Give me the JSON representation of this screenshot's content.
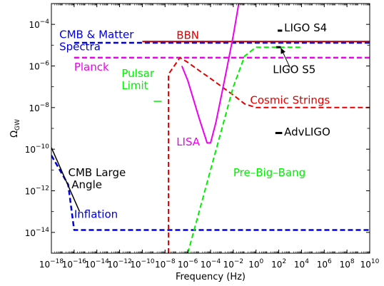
{
  "chart_data": {
    "type": "line",
    "title": "",
    "xlabel": "Frequency (Hz)",
    "ylabel": "Ω",
    "ylabel_sub": "GW",
    "x_scale": "log",
    "y_scale": "log",
    "xlim": [
      1e-18,
      10000000000.0
    ],
    "ylim": [
      1e-15,
      0.001
    ],
    "grid": false,
    "x_ticks": [
      {
        "value": 1e-18,
        "base": "10",
        "exp": "−18"
      },
      {
        "value": 1e-16,
        "base": "10",
        "exp": "−16"
      },
      {
        "value": 1e-14,
        "base": "10",
        "exp": "−14"
      },
      {
        "value": 1e-12,
        "base": "10",
        "exp": "−12"
      },
      {
        "value": 1e-10,
        "base": "10",
        "exp": "−10"
      },
      {
        "value": 1e-08,
        "base": "10",
        "exp": "−8"
      },
      {
        "value": 1e-06,
        "base": "10",
        "exp": "−6"
      },
      {
        "value": 0.0001,
        "base": "10",
        "exp": "−4"
      },
      {
        "value": 0.01,
        "base": "10",
        "exp": "−2"
      },
      {
        "value": 1.0,
        "base": "10",
        "exp": "0"
      },
      {
        "value": 100.0,
        "base": "10",
        "exp": "2"
      },
      {
        "value": 10000.0,
        "base": "10",
        "exp": "4"
      },
      {
        "value": 1000000.0,
        "base": "10",
        "exp": "6"
      },
      {
        "value": 100000000.0,
        "base": "10",
        "exp": "8"
      },
      {
        "value": 10000000000.0,
        "base": "10",
        "exp": "10"
      }
    ],
    "y_ticks": [
      {
        "value": 1e-14,
        "base": "10",
        "exp": "−14"
      },
      {
        "value": 1e-12,
        "base": "10",
        "exp": "−12"
      },
      {
        "value": 1e-10,
        "base": "10",
        "exp": "−10"
      },
      {
        "value": 1e-08,
        "base": "10",
        "exp": "−8"
      },
      {
        "value": 1e-06,
        "base": "10",
        "exp": "−6"
      },
      {
        "value": 0.0001,
        "base": "10",
        "exp": "−4"
      }
    ],
    "series": [
      {
        "key": "bbn",
        "color": "#e00000",
        "style": "solid",
        "width": 2.2,
        "x": [
          1e-10,
          10000000000.0
        ],
        "y": [
          1.5e-05,
          1.5e-05
        ]
      },
      {
        "key": "cmb-matter",
        "color": "#0000dd",
        "style": "dashed",
        "width": 2.5,
        "x": [
          1e-16,
          10000000000.0
        ],
        "y": [
          1.3e-05,
          1.3e-05
        ]
      },
      {
        "key": "planck",
        "color": "#ee00ee",
        "style": "dashed",
        "width": 2.5,
        "x": [
          1e-16,
          10000000000.0
        ],
        "y": [
          2.5e-06,
          2.5e-06
        ]
      },
      {
        "key": "inflation",
        "color": "#0000dd",
        "style": "dashed",
        "width": 2.5,
        "x": [
          1e-18,
          3e-17,
          1e-16,
          1e-12,
          1e-08,
          0.0001,
          1,
          10000.0,
          10000000000.0
        ],
        "y": [
          5e-11,
          2e-12,
          1.3e-14,
          1.3e-14,
          1.3e-14,
          1.3e-14,
          1.3e-14,
          1.3e-14,
          1.3e-14
        ]
      },
      {
        "key": "cmb-large-angle",
        "color": "#000000",
        "style": "solid",
        "width": 1.5,
        "x": [
          1e-18,
          3e-16
        ],
        "y": [
          1.2e-10,
          1e-13
        ]
      },
      {
        "key": "cosmic-strings",
        "color": "#e00000",
        "style": "dashed",
        "width": 2,
        "x": [
          2e-08,
          2e-08,
          2e-07,
          1e-06,
          1e-05,
          0.0001,
          0.001,
          0.01,
          0.1,
          1,
          10,
          10000.0,
          10000000000.0
        ],
        "y": [
          1e-15,
          4e-07,
          2.5e-06,
          1.5e-06,
          6e-07,
          2.5e-07,
          1e-07,
          4e-08,
          1.5e-08,
          1e-08,
          1e-08,
          1e-08,
          1e-08
        ]
      },
      {
        "key": "lisa",
        "color": "#ee00ee",
        "style": "solid",
        "width": 2,
        "x": [
          3e-07,
          1e-06,
          1e-05,
          5e-05,
          0.0001,
          0.0003,
          0.001,
          0.003,
          0.01,
          0.03,
          0.1
        ],
        "y": [
          1e-06,
          2e-07,
          3e-09,
          2e-10,
          2e-10,
          2e-09,
          5e-08,
          1e-06,
          3e-05,
          0.001,
          0.001
        ]
      },
      {
        "key": "pre-big-bang",
        "color": "#00ee00",
        "style": "dashed",
        "width": 2,
        "x": [
          1e-06,
          0.0001,
          0.01,
          0.1,
          1,
          100.0,
          10000.0
        ],
        "y": [
          1e-15,
          1e-11,
          1e-07,
          3e-06,
          8e-06,
          8e-06,
          8e-06
        ]
      }
    ],
    "segments": [
      {
        "key": "pulsar-limit",
        "color": "#00ee00",
        "width": 1.5,
        "x": [
          1e-09,
          5e-09
        ],
        "y": [
          2e-08,
          2e-08
        ]
      },
      {
        "key": "ligo-s4",
        "color": "#000000",
        "width": 3,
        "x": [
          80,
          200
        ],
        "y": [
          5e-05,
          5e-05
        ]
      },
      {
        "key": "ligo-s5",
        "color": "#000000",
        "width": 3,
        "x": [
          60,
          150
        ],
        "y": [
          8e-06,
          8e-06
        ]
      },
      {
        "key": "adv-ligo",
        "color": "#000000",
        "width": 3,
        "x": [
          50,
          200
        ],
        "y": [
          6e-10,
          6e-10
        ]
      }
    ],
    "annotations": [
      {
        "key": "cmb-matter",
        "lines": [
          "CMB & Matter",
          "Spectra"
        ],
        "color": "#0000dd",
        "x": 5e-18,
        "y": 2.2e-05,
        "anchor": "start"
      },
      {
        "key": "bbn",
        "lines": [
          "BBN"
        ],
        "color": "#e00000",
        "x": 1e-07,
        "y": 2e-05,
        "anchor": "start"
      },
      {
        "key": "planck",
        "lines": [
          "Planck"
        ],
        "color": "#ee00ee",
        "x": 1e-16,
        "y": 6e-07,
        "anchor": "start"
      },
      {
        "key": "ligo-s4",
        "lines": [
          "LIGO S4"
        ],
        "color": "#000000",
        "x": 300,
        "y": 4.6e-05,
        "anchor": "start"
      },
      {
        "key": "ligo-s5",
        "lines": [
          "LIGO S5"
        ],
        "color": "#000000",
        "x": 30,
        "y": 4.5e-07,
        "anchor": "start"
      },
      {
        "key": "pulsar-limit",
        "lines": [
          "Pulsar",
          "Limit"
        ],
        "color": "#00ee00",
        "x": 1.5e-12,
        "y": 3e-07,
        "anchor": "start"
      },
      {
        "key": "cosmic-strings",
        "lines": [
          "Cosmic  Strings"
        ],
        "color": "#e00000",
        "x": 0.3,
        "y": 1.5e-08,
        "anchor": "start"
      },
      {
        "key": "adv-ligo",
        "lines": [
          "AdvLIGO"
        ],
        "color": "#000000",
        "x": 300,
        "y": 4.5e-10,
        "anchor": "start"
      },
      {
        "key": "cmb-large-angle",
        "lines": [
          "CMB Large",
          " Angle"
        ],
        "color": "#000000",
        "x": 3e-17,
        "y": 5e-12,
        "anchor": "start"
      },
      {
        "key": "lisa",
        "lines": [
          "LISA"
        ],
        "color": "#ee00ee",
        "x": 1e-07,
        "y": 1.5e-10,
        "anchor": "start"
      },
      {
        "key": "pre-big-bang",
        "lines": [
          "Pre–Big–Bang"
        ],
        "color": "#00ee00",
        "x": 0.01,
        "y": 5e-12,
        "anchor": "start"
      },
      {
        "key": "inflation",
        "lines": [
          "Inflation"
        ],
        "color": "#0000dd",
        "x": 1e-16,
        "y": 5e-14,
        "anchor": "start"
      }
    ],
    "arrows": [
      {
        "key": "ligo-s5",
        "color": "#000000",
        "from_x": 1000.0,
        "from_y": 8e-07,
        "to_x": 150,
        "to_y": 7.5e-06
      }
    ]
  }
}
